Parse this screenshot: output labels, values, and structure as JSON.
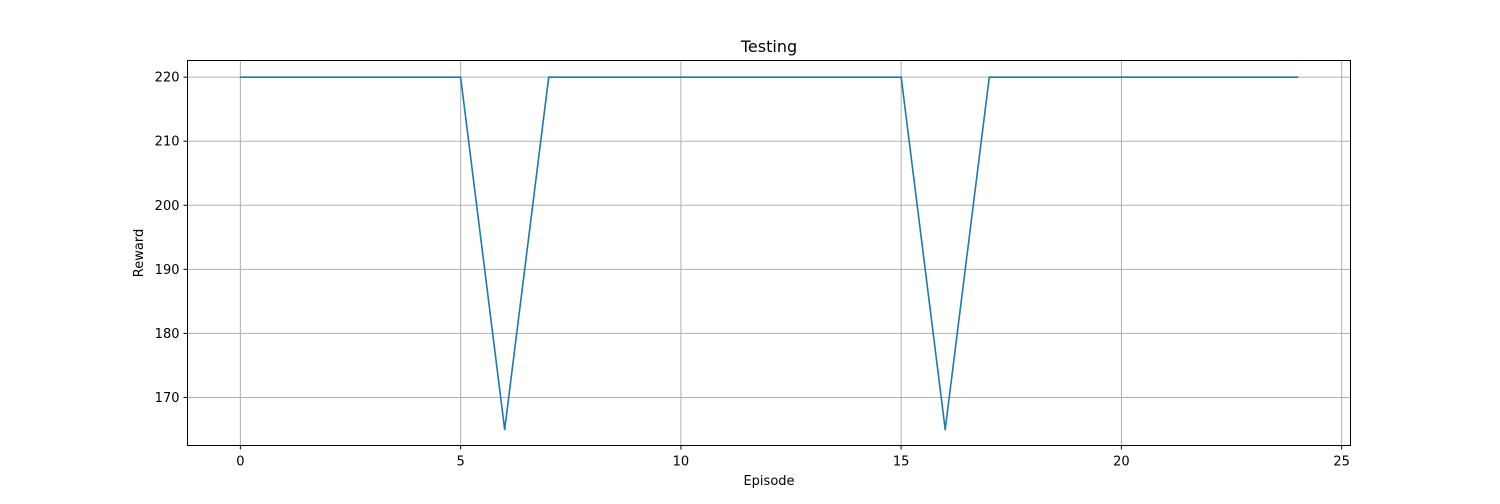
{
  "chart_data": {
    "type": "line",
    "title": "Testing",
    "xlabel": "Episode",
    "ylabel": "Reward",
    "xlim": [
      -1.2,
      25.2
    ],
    "ylim": [
      162.5,
      222.6
    ],
    "xticks": [
      0,
      5,
      10,
      15,
      20,
      25
    ],
    "yticks": [
      170,
      180,
      190,
      200,
      210,
      220
    ],
    "grid": true,
    "legend": "none",
    "line_color": "#1f77b4",
    "series": [
      {
        "x": [
          0,
          1,
          2,
          3,
          4,
          5,
          6,
          7,
          8,
          9,
          10,
          11,
          12,
          13,
          14,
          15,
          16,
          17,
          18,
          19,
          20,
          21,
          22,
          23,
          24
        ],
        "values": [
          220,
          220,
          220,
          220,
          220,
          220,
          165,
          220,
          220,
          220,
          220,
          220,
          220,
          220,
          220,
          220,
          165,
          220,
          220,
          220,
          220,
          220,
          220,
          220,
          220
        ]
      }
    ]
  }
}
